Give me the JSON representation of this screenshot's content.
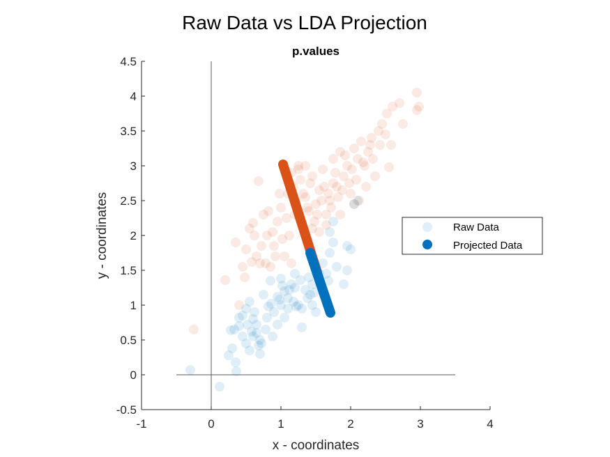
{
  "figure_title": "Raw Data vs LDA Projection",
  "chart_data": {
    "type": "scatter",
    "title": "p.values",
    "xlabel": "x - coordinates",
    "ylabel": "y - coordinates",
    "xlim": [
      -1,
      4
    ],
    "ylim": [
      -0.5,
      4.5
    ],
    "xticks": [
      -1,
      0,
      1,
      2,
      3,
      4
    ],
    "yticks": [
      -0.5,
      0,
      0.5,
      1,
      1.5,
      2,
      2.5,
      3,
      3.5,
      4,
      4.5
    ],
    "xtick_labels": [
      "-1",
      "0",
      "1",
      "2",
      "3",
      "4"
    ],
    "ytick_labels": [
      "-0.5",
      "0",
      "0.5",
      "1",
      "1.5",
      "2",
      "2.5",
      "3",
      "3.5",
      "4",
      "4.5"
    ],
    "grid": false,
    "legend_position": "right",
    "reference_lines": {
      "horizontal": {
        "y": 0,
        "x_range": [
          -0.5,
          3.5
        ]
      },
      "vertical": {
        "x": 0,
        "y_range": [
          -0.5,
          4.5
        ]
      }
    },
    "colors": {
      "class1": "#0072BD",
      "class2": "#D95319"
    },
    "legend": [
      {
        "label": "Raw Data",
        "style": "faded",
        "color": "#0072BD"
      },
      {
        "label": "Projected Data",
        "style": "solid",
        "color": "#0072BD"
      }
    ],
    "series": [
      {
        "class": "class1",
        "kind": "raw",
        "points": [
          [
            -0.3,
            0.07
          ],
          [
            0.12,
            -0.17
          ],
          [
            0.25,
            0.28
          ],
          [
            0.3,
            0.38
          ],
          [
            0.35,
            0.18
          ],
          [
            0.36,
            0.05
          ],
          [
            0.28,
            0.64
          ],
          [
            0.33,
            0.65
          ],
          [
            0.4,
            0.7
          ],
          [
            0.45,
            0.85
          ],
          [
            0.5,
            0.95
          ],
          [
            0.55,
            1.05
          ],
          [
            0.6,
            0.8
          ],
          [
            0.65,
            0.6
          ],
          [
            0.7,
            0.5
          ],
          [
            0.72,
            0.45
          ],
          [
            0.78,
            0.65
          ],
          [
            0.8,
            0.82
          ],
          [
            0.86,
            1.02
          ],
          [
            0.9,
            0.9
          ],
          [
            0.95,
            1.12
          ],
          [
            1.0,
            1.0
          ],
          [
            1.05,
            1.2
          ],
          [
            1.1,
            1.1
          ],
          [
            1.15,
            1.3
          ],
          [
            1.2,
            1.25
          ],
          [
            1.25,
            1.0
          ],
          [
            1.3,
            0.95
          ],
          [
            1.35,
            1.22
          ],
          [
            1.4,
            1.4
          ],
          [
            1.45,
            1.3
          ],
          [
            1.5,
            1.55
          ],
          [
            1.55,
            1.45
          ],
          [
            1.6,
            1.6
          ],
          [
            1.65,
            1.45
          ],
          [
            1.7,
            1.75
          ],
          [
            1.75,
            1.9
          ],
          [
            1.8,
            1.55
          ],
          [
            1.9,
            1.3
          ],
          [
            1.95,
            1.5
          ],
          [
            1.95,
            1.85
          ],
          [
            2.0,
            1.8
          ],
          [
            2.05,
            2.45
          ],
          [
            2.1,
            2.5
          ],
          [
            1.75,
            2.2
          ],
          [
            1.7,
            2.05
          ],
          [
            0.5,
            0.45
          ],
          [
            0.55,
            0.35
          ],
          [
            0.6,
            0.55
          ],
          [
            0.65,
            0.72
          ],
          [
            0.7,
            0.3
          ],
          [
            0.75,
            1.15
          ],
          [
            0.85,
            1.35
          ],
          [
            0.95,
            0.72
          ],
          [
            1.0,
            1.38
          ],
          [
            1.05,
            0.82
          ],
          [
            1.1,
            0.95
          ],
          [
            1.2,
            1.45
          ],
          [
            1.3,
            0.68
          ],
          [
            1.38,
            1.1
          ],
          [
            1.45,
            1.0
          ],
          [
            1.5,
            0.9
          ],
          [
            0.4,
            0.82
          ],
          [
            0.45,
            0.55
          ],
          [
            0.52,
            0.72
          ],
          [
            0.62,
            0.9
          ],
          [
            0.68,
            0.42
          ],
          [
            0.82,
            0.98
          ],
          [
            0.98,
            1.08
          ],
          [
            1.12,
            1.22
          ],
          [
            1.22,
            0.98
          ],
          [
            1.42,
            1.15
          ],
          [
            1.58,
            1.28
          ],
          [
            1.68,
            1.35
          ],
          [
            0.58,
            0.62
          ],
          [
            0.88,
            0.55
          ],
          [
            1.02,
            1.28
          ],
          [
            1.18,
            1.05
          ],
          [
            1.28,
            1.36
          ],
          [
            1.48,
            1.18
          ]
        ]
      },
      {
        "class": "class2",
        "kind": "raw",
        "points": [
          [
            -0.25,
            0.65
          ],
          [
            0.2,
            1.36
          ],
          [
            0.4,
            1.0
          ],
          [
            0.45,
            1.55
          ],
          [
            0.5,
            1.8
          ],
          [
            0.55,
            2.1
          ],
          [
            0.6,
            2.18
          ],
          [
            0.65,
            1.7
          ],
          [
            0.7,
            1.6
          ],
          [
            0.75,
            2.3
          ],
          [
            0.8,
            2.0
          ],
          [
            0.85,
            1.55
          ],
          [
            0.9,
            1.85
          ],
          [
            0.95,
            2.2
          ],
          [
            1.0,
            2.4
          ],
          [
            1.05,
            1.7
          ],
          [
            1.1,
            2.6
          ],
          [
            1.15,
            2.9
          ],
          [
            1.2,
            2.3
          ],
          [
            1.25,
            3.0
          ],
          [
            1.3,
            2.15
          ],
          [
            1.35,
            2.55
          ],
          [
            1.4,
            2.35
          ],
          [
            1.45,
            2.1
          ],
          [
            1.5,
            2.45
          ],
          [
            1.55,
            2.65
          ],
          [
            1.6,
            2.95
          ],
          [
            1.65,
            2.3
          ],
          [
            1.7,
            2.5
          ],
          [
            1.75,
            3.1
          ],
          [
            1.8,
            2.7
          ],
          [
            1.85,
            3.2
          ],
          [
            1.9,
            2.85
          ],
          [
            1.95,
            3.0
          ],
          [
            2.0,
            2.6
          ],
          [
            2.05,
            3.25
          ],
          [
            2.1,
            3.1
          ],
          [
            2.15,
            3.35
          ],
          [
            2.2,
            3.0
          ],
          [
            2.25,
            3.2
          ],
          [
            2.3,
            3.4
          ],
          [
            2.35,
            2.85
          ],
          [
            2.4,
            3.5
          ],
          [
            2.45,
            3.6
          ],
          [
            2.5,
            3.45
          ],
          [
            2.55,
            2.98
          ],
          [
            2.6,
            3.85
          ],
          [
            2.7,
            3.9
          ],
          [
            2.75,
            3.6
          ],
          [
            2.95,
            3.8
          ],
          [
            2.98,
            3.85
          ],
          [
            2.95,
            4.05
          ],
          [
            0.35,
            1.9
          ],
          [
            0.48,
            1.4
          ],
          [
            0.58,
            1.62
          ],
          [
            0.68,
            2.78
          ],
          [
            0.72,
            1.85
          ],
          [
            0.78,
            1.6
          ],
          [
            0.88,
            2.05
          ],
          [
            0.98,
            2.6
          ],
          [
            1.02,
            1.95
          ],
          [
            1.08,
            2.25
          ],
          [
            1.12,
            2.0
          ],
          [
            1.18,
            2.7
          ],
          [
            1.22,
            2.5
          ],
          [
            1.28,
            2.8
          ],
          [
            1.32,
            2.6
          ],
          [
            1.38,
            2.4
          ],
          [
            1.42,
            2.75
          ],
          [
            1.48,
            2.2
          ],
          [
            1.52,
            2.3
          ],
          [
            1.58,
            2.5
          ],
          [
            1.62,
            2.7
          ],
          [
            1.68,
            2.6
          ],
          [
            1.72,
            2.4
          ],
          [
            1.78,
            2.9
          ],
          [
            1.82,
            2.55
          ],
          [
            1.88,
            2.65
          ],
          [
            1.92,
            3.15
          ],
          [
            1.98,
            2.75
          ],
          [
            2.02,
            2.95
          ],
          [
            2.08,
            2.8
          ],
          [
            2.12,
            2.5
          ],
          [
            2.18,
            3.05
          ],
          [
            2.22,
            2.7
          ],
          [
            2.28,
            3.3
          ],
          [
            2.32,
            3.1
          ],
          [
            2.42,
            3.3
          ],
          [
            2.52,
            3.75
          ],
          [
            2.58,
            3.3
          ],
          [
            0.62,
            2.0
          ],
          [
            0.82,
            2.35
          ],
          [
            1.15,
            1.6
          ],
          [
            1.25,
            2.95
          ],
          [
            1.45,
            2.85
          ],
          [
            1.55,
            2.05
          ],
          [
            1.65,
            2.15
          ],
          [
            1.85,
            2.3
          ],
          [
            2.05,
            2.45
          ],
          [
            0.92,
            1.7
          ],
          [
            1.35,
            3.0
          ],
          [
            1.75,
            2.75
          ]
        ]
      },
      {
        "class": "class2",
        "kind": "projected",
        "segment": [
          [
            1.03,
            3.02
          ],
          [
            1.52,
            1.47
          ]
        ]
      },
      {
        "class": "class1",
        "kind": "projected",
        "segment": [
          [
            1.42,
            1.75
          ],
          [
            1.71,
            0.89
          ]
        ]
      }
    ]
  }
}
